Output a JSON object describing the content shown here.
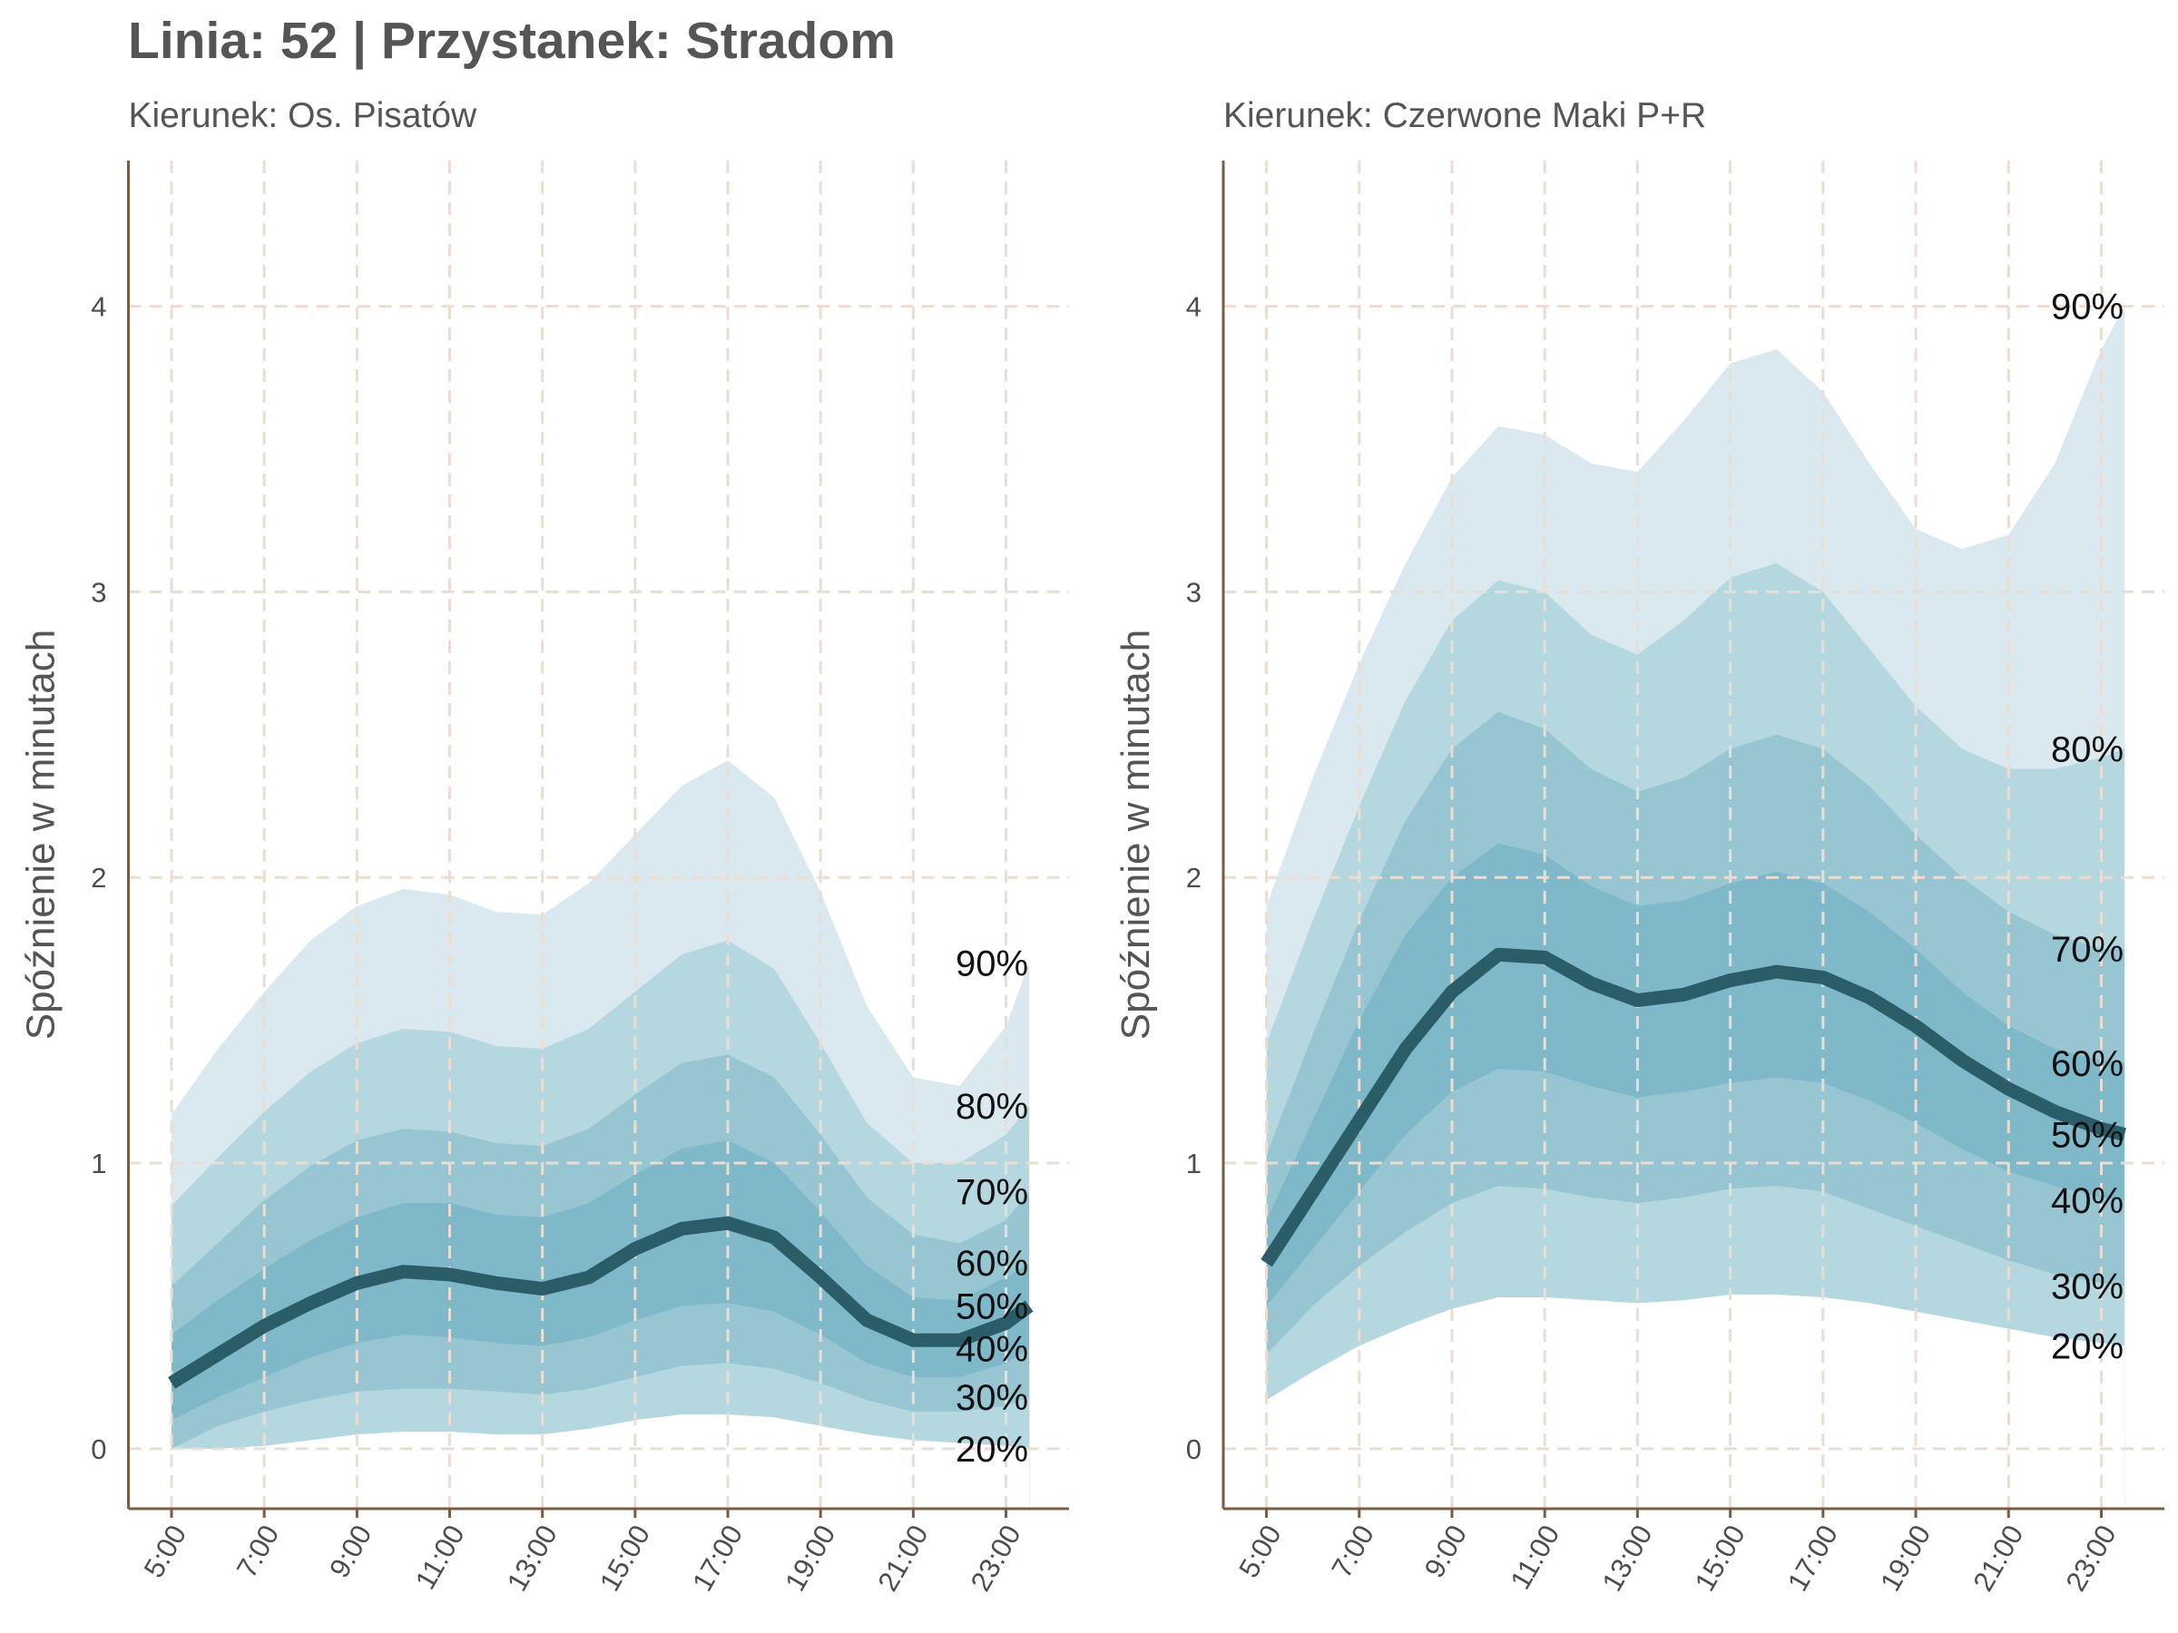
{
  "title": "Linia: 52 | Przystanek: Stradom",
  "chart_data": [
    {
      "type": "area",
      "subtitle": "Kierunek: Os. Pisatów",
      "y_label": "Spóźnienie w minutach",
      "x": [
        5,
        6,
        7,
        8,
        9,
        10,
        11,
        12,
        13,
        14,
        15,
        16,
        17,
        18,
        19,
        20,
        21,
        22,
        23,
        23.5
      ],
      "xlim": [
        4.07,
        24.36
      ],
      "ylim": [
        -0.21,
        4.51
      ],
      "xticks": [
        {
          "value": 5,
          "label": "5:00"
        },
        {
          "value": 7,
          "label": "7:00"
        },
        {
          "value": 9,
          "label": "9:00"
        },
        {
          "value": 11,
          "label": "11:00"
        },
        {
          "value": 13,
          "label": "13:00"
        },
        {
          "value": 15,
          "label": "15:00"
        },
        {
          "value": 17,
          "label": "17:00"
        },
        {
          "value": 19,
          "label": "19:00"
        },
        {
          "value": 21,
          "label": "21:00"
        },
        {
          "value": 23,
          "label": "23:00"
        }
      ],
      "yticks": [
        0,
        1,
        2,
        3,
        4
      ],
      "grid": true,
      "series": [
        {
          "name": "90%",
          "style": "area",
          "color": "#d9e9ef",
          "values": [
            1.17,
            1.4,
            1.6,
            1.78,
            1.9,
            1.96,
            1.94,
            1.88,
            1.87,
            1.98,
            2.15,
            2.32,
            2.41,
            2.28,
            1.95,
            1.55,
            1.3,
            1.27,
            1.48,
            1.7
          ]
        },
        {
          "name": "80%",
          "style": "area",
          "color": "#b4d7e0",
          "values": [
            0.85,
            1.02,
            1.18,
            1.32,
            1.42,
            1.47,
            1.46,
            1.41,
            1.4,
            1.47,
            1.6,
            1.73,
            1.78,
            1.68,
            1.42,
            1.14,
            1.0,
            1.0,
            1.1,
            1.2
          ]
        },
        {
          "name": "70%",
          "style": "area",
          "color": "#97c6d2",
          "values": [
            0.57,
            0.72,
            0.87,
            0.99,
            1.08,
            1.12,
            1.11,
            1.07,
            1.06,
            1.12,
            1.24,
            1.35,
            1.38,
            1.3,
            1.1,
            0.88,
            0.75,
            0.72,
            0.8,
            0.9
          ]
        },
        {
          "name": "60%",
          "style": "area",
          "color": "#7fb8c8",
          "values": [
            0.4,
            0.52,
            0.63,
            0.73,
            0.81,
            0.86,
            0.86,
            0.82,
            0.81,
            0.86,
            0.96,
            1.05,
            1.08,
            1.0,
            0.83,
            0.64,
            0.53,
            0.52,
            0.6,
            0.65
          ]
        },
        {
          "name": "40%",
          "style": "area",
          "color": "#97c6d2",
          "values": [
            0.1,
            0.18,
            0.25,
            0.32,
            0.37,
            0.4,
            0.39,
            0.37,
            0.36,
            0.39,
            0.45,
            0.5,
            0.51,
            0.48,
            0.4,
            0.3,
            0.25,
            0.25,
            0.3,
            0.35
          ]
        },
        {
          "name": "30%",
          "style": "area",
          "color": "#b4d7e0",
          "values": [
            0.0,
            0.08,
            0.13,
            0.17,
            0.2,
            0.21,
            0.21,
            0.2,
            0.19,
            0.21,
            0.25,
            0.29,
            0.3,
            0.28,
            0.23,
            0.17,
            0.13,
            0.13,
            0.15,
            0.18
          ]
        },
        {
          "name": "20%",
          "style": "area",
          "color": "#ffffff",
          "values": [
            0.0,
            0.0,
            0.01,
            0.03,
            0.05,
            0.06,
            0.06,
            0.05,
            0.05,
            0.07,
            0.1,
            0.12,
            0.12,
            0.11,
            0.08,
            0.05,
            0.03,
            0.02,
            0.01,
            0.0
          ]
        },
        {
          "name": "50%",
          "style": "line",
          "color": "#2b5d69",
          "values": [
            0.23,
            0.33,
            0.43,
            0.51,
            0.58,
            0.62,
            0.61,
            0.58,
            0.56,
            0.6,
            0.7,
            0.77,
            0.79,
            0.74,
            0.6,
            0.45,
            0.38,
            0.38,
            0.44,
            0.5
          ]
        }
      ]
    },
    {
      "type": "area",
      "subtitle": "Kierunek: Czerwone Maki P+R",
      "y_label": "Spóźnienie w minutach",
      "x": [
        5,
        6,
        7,
        8,
        9,
        10,
        11,
        12,
        13,
        14,
        15,
        16,
        17,
        18,
        19,
        20,
        21,
        22,
        23,
        23.5
      ],
      "xlim": [
        4.07,
        24.36
      ],
      "ylim": [
        -0.21,
        4.51
      ],
      "xticks": [
        {
          "value": 5,
          "label": "5:00"
        },
        {
          "value": 7,
          "label": "7:00"
        },
        {
          "value": 9,
          "label": "9:00"
        },
        {
          "value": 11,
          "label": "11:00"
        },
        {
          "value": 13,
          "label": "13:00"
        },
        {
          "value": 15,
          "label": "15:00"
        },
        {
          "value": 17,
          "label": "17:00"
        },
        {
          "value": 19,
          "label": "19:00"
        },
        {
          "value": 21,
          "label": "21:00"
        },
        {
          "value": 23,
          "label": "23:00"
        }
      ],
      "yticks": [
        0,
        1,
        2,
        3,
        4
      ],
      "grid": true,
      "series": [
        {
          "name": "90%",
          "style": "area",
          "color": "#d9e9ef",
          "values": [
            1.9,
            2.35,
            2.75,
            3.1,
            3.4,
            3.58,
            3.55,
            3.45,
            3.42,
            3.6,
            3.8,
            3.85,
            3.7,
            3.45,
            3.22,
            3.15,
            3.2,
            3.45,
            3.85,
            4.0
          ]
        },
        {
          "name": "80%",
          "style": "area",
          "color": "#b4d7e0",
          "values": [
            1.42,
            1.85,
            2.25,
            2.62,
            2.9,
            3.04,
            3.0,
            2.85,
            2.78,
            2.9,
            3.05,
            3.1,
            3.0,
            2.8,
            2.6,
            2.45,
            2.38,
            2.38,
            2.42,
            2.45
          ]
        },
        {
          "name": "70%",
          "style": "area",
          "color": "#97c6d2",
          "values": [
            1.03,
            1.45,
            1.85,
            2.2,
            2.45,
            2.58,
            2.52,
            2.38,
            2.3,
            2.35,
            2.45,
            2.5,
            2.45,
            2.32,
            2.15,
            2.0,
            1.88,
            1.8,
            1.75,
            1.75
          ]
        },
        {
          "name": "60%",
          "style": "area",
          "color": "#7fb8c8",
          "values": [
            0.8,
            1.15,
            1.5,
            1.8,
            2.0,
            2.12,
            2.08,
            1.97,
            1.9,
            1.92,
            1.98,
            2.02,
            1.98,
            1.88,
            1.75,
            1.6,
            1.48,
            1.4,
            1.36,
            1.35
          ]
        },
        {
          "name": "40%",
          "style": "area",
          "color": "#97c6d2",
          "values": [
            0.5,
            0.7,
            0.9,
            1.1,
            1.25,
            1.33,
            1.32,
            1.27,
            1.23,
            1.25,
            1.28,
            1.3,
            1.28,
            1.22,
            1.14,
            1.05,
            0.97,
            0.92,
            0.88,
            0.87
          ]
        },
        {
          "name": "30%",
          "style": "area",
          "color": "#b4d7e0",
          "values": [
            0.33,
            0.5,
            0.64,
            0.76,
            0.86,
            0.92,
            0.91,
            0.88,
            0.86,
            0.88,
            0.91,
            0.92,
            0.9,
            0.84,
            0.78,
            0.72,
            0.66,
            0.61,
            0.58,
            0.57
          ]
        },
        {
          "name": "20%",
          "style": "area",
          "color": "#ffffff",
          "values": [
            0.17,
            0.27,
            0.36,
            0.43,
            0.49,
            0.53,
            0.53,
            0.52,
            0.51,
            0.52,
            0.54,
            0.54,
            0.53,
            0.51,
            0.48,
            0.45,
            0.42,
            0.39,
            0.37,
            0.36
          ]
        },
        {
          "name": "50%",
          "style": "line",
          "color": "#2b5d69",
          "values": [
            0.65,
            0.9,
            1.15,
            1.4,
            1.6,
            1.73,
            1.72,
            1.63,
            1.57,
            1.59,
            1.64,
            1.67,
            1.65,
            1.58,
            1.48,
            1.36,
            1.26,
            1.18,
            1.12,
            1.1
          ]
        }
      ]
    }
  ]
}
